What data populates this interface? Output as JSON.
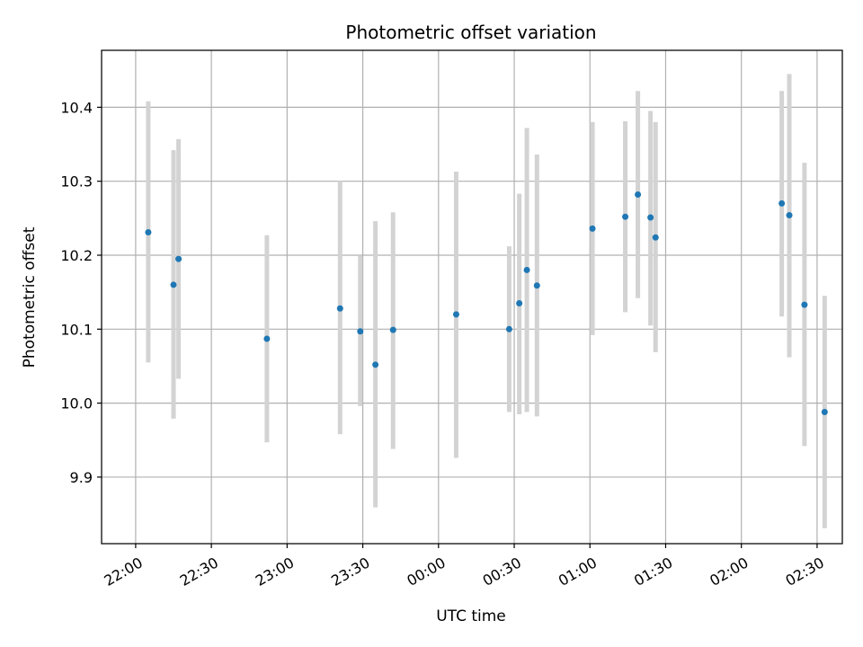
{
  "chart_data": {
    "type": "scatter",
    "title": "Photometric offset variation",
    "xlabel": "UTC time",
    "ylabel": "Photometric offset",
    "x_axis": {
      "unit": "minutes after 22:00 UTC",
      "range": [
        -13.5,
        280
      ],
      "ticks": [
        {
          "value": 0,
          "label": "22:00"
        },
        {
          "value": 30,
          "label": "22:30"
        },
        {
          "value": 60,
          "label": "23:00"
        },
        {
          "value": 90,
          "label": "23:30"
        },
        {
          "value": 120,
          "label": "00:00"
        },
        {
          "value": 150,
          "label": "00:30"
        },
        {
          "value": 180,
          "label": "01:00"
        },
        {
          "value": 210,
          "label": "01:30"
        },
        {
          "value": 240,
          "label": "02:00"
        },
        {
          "value": 270,
          "label": "02:30"
        }
      ]
    },
    "y_axis": {
      "range": [
        9.81,
        10.477
      ],
      "ticks": [
        {
          "value": 9.9,
          "label": "9.9"
        },
        {
          "value": 10.0,
          "label": "10.0"
        },
        {
          "value": 10.1,
          "label": "10.1"
        },
        {
          "value": 10.2,
          "label": "10.2"
        },
        {
          "value": 10.3,
          "label": "10.3"
        },
        {
          "value": 10.4,
          "label": "10.4"
        }
      ]
    },
    "grid": true,
    "legend": "none",
    "points": [
      {
        "time": "22:05",
        "y": 10.231,
        "ylow": 10.055,
        "yhigh": 10.408
      },
      {
        "time": "22:15",
        "y": 10.16,
        "ylow": 9.979,
        "yhigh": 10.342
      },
      {
        "time": "22:17",
        "y": 10.195,
        "ylow": 10.033,
        "yhigh": 10.357
      },
      {
        "time": "22:52",
        "y": 10.087,
        "ylow": 9.947,
        "yhigh": 10.227
      },
      {
        "time": "23:21",
        "y": 10.128,
        "ylow": 9.958,
        "yhigh": 10.3
      },
      {
        "time": "23:29",
        "y": 10.097,
        "ylow": 9.996,
        "yhigh": 10.199
      },
      {
        "time": "23:35",
        "y": 10.052,
        "ylow": 9.859,
        "yhigh": 10.246
      },
      {
        "time": "23:42",
        "y": 10.099,
        "ylow": 9.938,
        "yhigh": 10.258
      },
      {
        "time": "00:07",
        "y": 10.12,
        "ylow": 9.926,
        "yhigh": 10.313
      },
      {
        "time": "00:28",
        "y": 10.1,
        "ylow": 9.988,
        "yhigh": 10.212
      },
      {
        "time": "00:32",
        "y": 10.135,
        "ylow": 9.985,
        "yhigh": 10.283
      },
      {
        "time": "00:35",
        "y": 10.18,
        "ylow": 9.988,
        "yhigh": 10.372
      },
      {
        "time": "00:39",
        "y": 10.159,
        "ylow": 9.982,
        "yhigh": 10.336
      },
      {
        "time": "01:01",
        "y": 10.236,
        "ylow": 10.092,
        "yhigh": 10.38
      },
      {
        "time": "01:14",
        "y": 10.252,
        "ylow": 10.123,
        "yhigh": 10.381
      },
      {
        "time": "01:19",
        "y": 10.282,
        "ylow": 10.142,
        "yhigh": 10.422
      },
      {
        "time": "01:24",
        "y": 10.251,
        "ylow": 10.105,
        "yhigh": 10.395
      },
      {
        "time": "01:26",
        "y": 10.224,
        "ylow": 10.069,
        "yhigh": 10.38
      },
      {
        "time": "02:16",
        "y": 10.27,
        "ylow": 10.117,
        "yhigh": 10.422
      },
      {
        "time": "02:19",
        "y": 10.254,
        "ylow": 10.062,
        "yhigh": 10.445
      },
      {
        "time": "02:25",
        "y": 10.133,
        "ylow": 9.942,
        "yhigh": 10.325
      },
      {
        "time": "02:33",
        "y": 9.988,
        "ylow": 9.831,
        "yhigh": 10.145
      }
    ],
    "colors": {
      "point": "#1f77b4",
      "errorbar": "#d3d3d3",
      "grid": "#b0b0b0",
      "axis": "#000000"
    }
  }
}
